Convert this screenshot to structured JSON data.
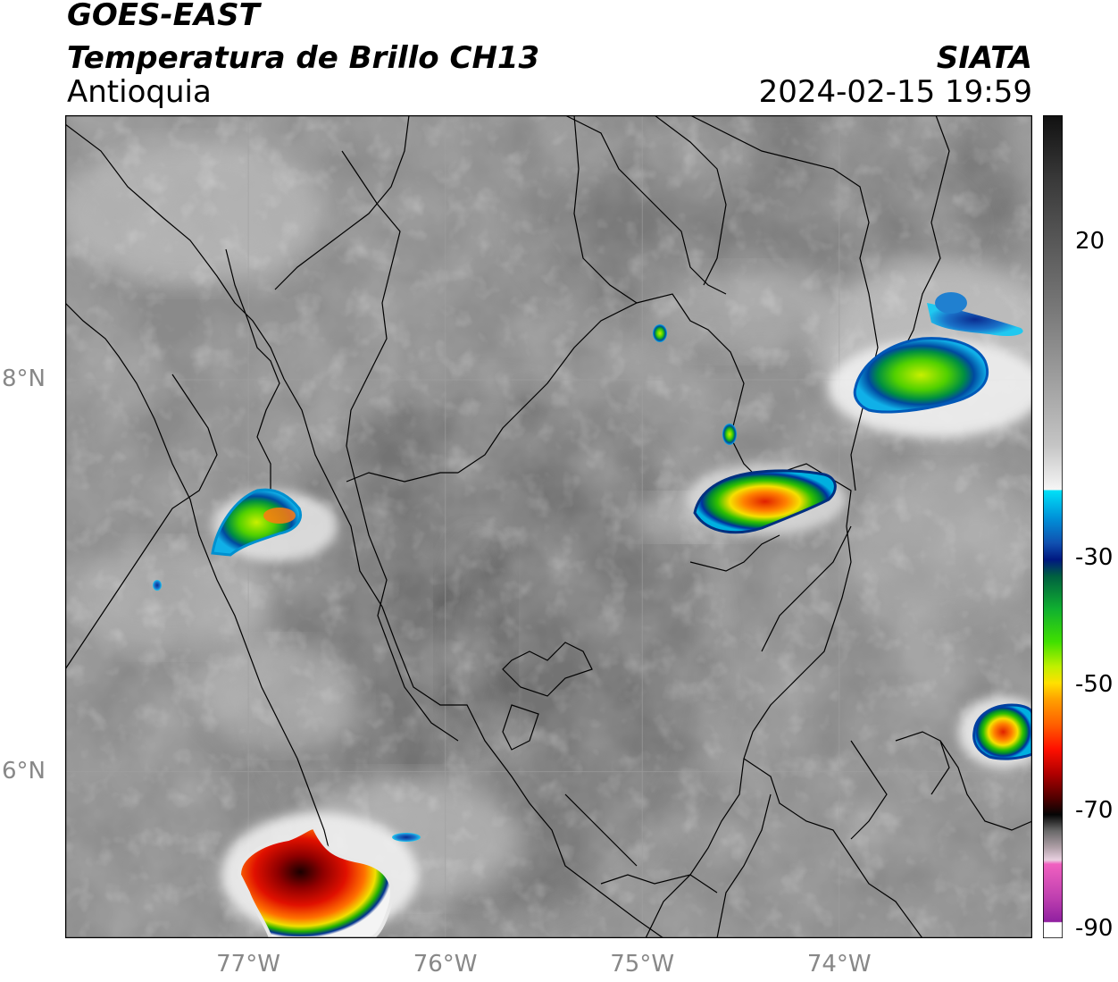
{
  "header": {
    "satellite": "GOES-EAST",
    "product": "Temperatura de Brillo CH13",
    "region": "Antioquia",
    "agency": "SIATA",
    "datetime": "2024-02-15 19:59"
  },
  "map": {
    "lon_range": [
      -77.93,
      -73.02
    ],
    "lat_range": [
      5.15,
      9.35
    ],
    "lon_ticks": [
      {
        "value": -77,
        "label": "77°W"
      },
      {
        "value": -76,
        "label": "76°W"
      },
      {
        "value": -75,
        "label": "75°W"
      },
      {
        "value": -74,
        "label": "74°W"
      }
    ],
    "lat_ticks": [
      {
        "value": 8,
        "label": "8°N"
      },
      {
        "value": 6,
        "label": "6°N"
      }
    ],
    "gridlines": true,
    "cold_cloud_cells": [
      {
        "lon": -76.8,
        "lat": 7.25,
        "min_temp": -60
      },
      {
        "lon": -74.4,
        "lat": 7.33,
        "min_temp": -65
      },
      {
        "lon": -73.6,
        "lat": 7.98,
        "min_temp": -45
      },
      {
        "lon": -73.2,
        "lat": 6.1,
        "min_temp": -60
      },
      {
        "lon": -76.6,
        "lat": 5.4,
        "min_temp": -75
      },
      {
        "lon": -74.8,
        "lat": 8.13,
        "min_temp": -40
      },
      {
        "lon": -74.5,
        "lat": 7.7,
        "min_temp": -40
      },
      {
        "lon": -77.45,
        "lat": 6.85,
        "min_temp": -30
      },
      {
        "lon": -76.1,
        "lat": 5.6,
        "min_temp": -30
      },
      {
        "lon": -73.7,
        "lat": 8.2,
        "min_temp": -30
      }
    ]
  },
  "colorbar": {
    "ticks": [
      {
        "value": 20,
        "label": "20"
      },
      {
        "value": -30,
        "label": "-30"
      },
      {
        "value": -50,
        "label": "-50"
      },
      {
        "value": -70,
        "label": "-70"
      },
      {
        "value": -90,
        "label": "-90"
      }
    ],
    "range": [
      -90,
      40
    ]
  }
}
